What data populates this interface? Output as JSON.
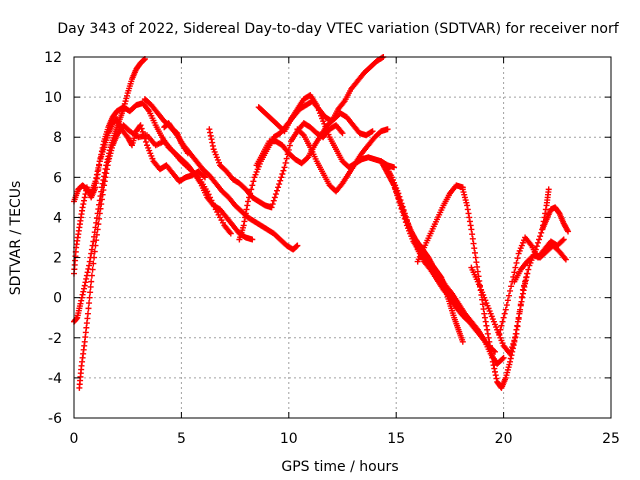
{
  "chart_data": {
    "type": "scatter",
    "title": "Day 343 of 2022, Sidereal Day-to-day VTEC variation (SDTVAR) for receiver norf",
    "xlabel": "GPS time / hours",
    "ylabel": "SDTVAR / TECUs",
    "xlim": [
      0,
      25
    ],
    "ylim": [
      -6,
      12
    ],
    "xticks": [
      0,
      5,
      10,
      15,
      20,
      25
    ],
    "yticks": [
      -6,
      -4,
      -2,
      0,
      2,
      4,
      6,
      8,
      10,
      12
    ],
    "grid": true,
    "marker": "plus",
    "color": "#ff0000",
    "series": [
      {
        "x": [
          0.0,
          0.1,
          0.25,
          0.4,
          0.6,
          0.8,
          1.0,
          1.2,
          1.4,
          1.6,
          1.8,
          2.0,
          2.2,
          2.5,
          2.7,
          2.9,
          3.1,
          3.4,
          3.7,
          4.0,
          4.3,
          4.6,
          4.9,
          5.2,
          5.5,
          5.8,
          6.1
        ],
        "y": [
          1.2,
          2.5,
          3.5,
          4.5,
          5.5,
          5.0,
          5.5,
          6.8,
          7.5,
          8.2,
          8.7,
          8.9,
          8.4,
          8.0,
          7.6,
          8.3,
          8.6,
          7.6,
          6.8,
          6.4,
          6.6,
          6.2,
          5.8,
          6.0,
          6.1,
          6.3,
          6.0
        ]
      },
      {
        "x": [
          0.0,
          0.2,
          0.4,
          0.6,
          0.8,
          1.0,
          1.2,
          1.4,
          1.6,
          1.8,
          2.0,
          2.3,
          2.6,
          2.9,
          3.2,
          3.5,
          3.8,
          4.1,
          4.4,
          4.7,
          5.0,
          5.3,
          5.6,
          5.9,
          6.2,
          6.5,
          6.8,
          7.1,
          7.4,
          7.7,
          8.0,
          8.3
        ],
        "y": [
          4.8,
          5.4,
          5.6,
          5.4,
          5.2,
          5.8,
          6.8,
          7.8,
          8.5,
          9.0,
          9.3,
          9.5,
          9.3,
          9.6,
          9.7,
          9.3,
          8.6,
          8.0,
          7.5,
          7.2,
          6.9,
          6.6,
          6.2,
          5.7,
          5.0,
          4.6,
          4.4,
          4.0,
          3.6,
          3.2,
          3.0,
          2.9
        ]
      },
      {
        "x": [
          0.0,
          0.15,
          0.3,
          0.5,
          0.7,
          0.9,
          1.1,
          1.3,
          1.5,
          1.7,
          1.9,
          2.1,
          2.3,
          2.5,
          2.7,
          2.9,
          3.1,
          3.3
        ],
        "y": [
          -1.2,
          -1.0,
          -0.3,
          0.6,
          1.6,
          2.8,
          4.2,
          5.5,
          6.6,
          7.5,
          8.2,
          8.8,
          9.4,
          10.2,
          10.9,
          11.4,
          11.7,
          11.9
        ]
      },
      {
        "x": [
          0.25,
          0.35,
          0.5,
          0.65,
          0.8,
          1.0,
          1.2,
          1.4,
          1.6,
          1.8,
          2.0,
          2.3,
          2.6,
          3.0,
          3.4,
          3.8,
          4.2,
          4.6,
          5.0,
          5.4,
          5.8,
          6.2,
          6.6,
          7.0,
          7.3
        ],
        "y": [
          -4.5,
          -3.4,
          -2.2,
          -0.8,
          0.8,
          2.6,
          4.2,
          5.6,
          6.8,
          7.6,
          8.1,
          8.6,
          8.3,
          8.0,
          8.1,
          7.6,
          7.8,
          7.3,
          6.8,
          6.4,
          6.0,
          5.3,
          4.4,
          3.6,
          3.2
        ]
      },
      {
        "x": [
          3.3,
          3.6,
          3.9,
          4.2,
          4.5,
          4.8,
          5.1,
          5.4,
          5.7,
          6.0,
          6.3,
          6.6,
          6.9,
          7.2,
          7.5,
          7.8,
          8.1,
          8.4,
          8.7,
          9.0,
          9.3,
          9.6,
          9.9,
          10.2,
          10.4
        ],
        "y": [
          9.9,
          9.6,
          9.2,
          8.8,
          8.5,
          8.1,
          7.6,
          7.2,
          6.8,
          6.4,
          6.1,
          5.7,
          5.3,
          5.0,
          4.6,
          4.3,
          4.0,
          3.8,
          3.6,
          3.4,
          3.2,
          2.9,
          2.6,
          2.4,
          2.6
        ]
      },
      {
        "x": [
          4.2,
          4.4,
          4.6,
          4.8,
          5.0,
          5.3
        ],
        "y": [
          8.5,
          8.7,
          8.4,
          8.2,
          7.7,
          7.2
        ]
      },
      {
        "x": [
          6.3,
          6.5,
          6.8,
          7.1,
          7.4,
          7.7,
          8.0,
          8.3,
          8.6,
          8.9,
          9.2,
          9.5,
          9.8,
          10.1,
          10.4,
          10.7,
          11.0,
          11.3,
          11.6,
          11.9,
          12.2,
          12.5
        ],
        "y": [
          8.4,
          7.4,
          6.6,
          6.3,
          5.9,
          5.7,
          5.4,
          5.0,
          4.8,
          4.6,
          4.5,
          5.5,
          6.5,
          7.8,
          8.3,
          8.7,
          8.5,
          8.2,
          8.0,
          8.4,
          8.6,
          8.2
        ]
      },
      {
        "x": [
          7.7,
          7.9,
          8.1,
          8.4,
          8.7,
          9.0,
          9.3,
          9.6,
          9.9,
          10.2,
          10.5,
          10.8,
          11.1,
          11.4,
          11.7,
          12.0,
          12.3,
          12.6,
          12.9,
          13.2,
          13.5,
          13.8,
          14.1,
          14.4,
          14.6
        ],
        "y": [
          2.9,
          3.6,
          4.8,
          6.0,
          6.8,
          7.4,
          8.0,
          8.2,
          8.6,
          9.0,
          9.4,
          9.6,
          9.8,
          9.4,
          9.0,
          8.8,
          9.4,
          9.8,
          10.4,
          10.8,
          11.2,
          11.5,
          11.8,
          12.0,
          12.1
        ]
      },
      {
        "x": [
          8.5,
          8.8,
          9.1,
          9.4,
          9.7,
          10.0,
          10.3,
          10.6,
          10.9,
          11.2,
          11.5,
          11.8,
          12.1,
          12.4,
          12.7,
          13.0,
          13.3,
          13.6,
          13.9
        ],
        "y": [
          6.6,
          7.2,
          7.8,
          7.8,
          7.6,
          7.2,
          6.9,
          6.7,
          7.0,
          7.6,
          8.1,
          8.6,
          8.9,
          9.2,
          9.0,
          8.6,
          8.2,
          8.1,
          8.3
        ]
      },
      {
        "x": [
          8.6,
          8.9,
          9.2,
          9.5,
          9.8,
          10.1,
          10.4,
          10.7,
          11.0,
          11.3,
          11.6,
          11.9,
          12.2,
          12.5,
          12.8,
          13.1,
          13.4,
          13.7,
          14.0,
          14.3,
          14.6,
          14.9
        ],
        "y": [
          9.5,
          9.2,
          8.9,
          8.6,
          8.3,
          8.9,
          9.4,
          9.9,
          10.1,
          9.6,
          8.8,
          8.0,
          7.4,
          6.8,
          6.5,
          6.7,
          6.9,
          7.0,
          6.9,
          6.8,
          6.6,
          6.5
        ]
      },
      {
        "x": [
          10.4,
          10.7,
          11.0,
          11.3,
          11.6,
          11.9,
          12.2,
          12.5,
          12.8,
          13.1,
          13.4,
          13.7,
          14.0,
          14.3,
          14.6
        ],
        "y": [
          8.4,
          8.1,
          7.5,
          6.8,
          6.2,
          5.6,
          5.3,
          5.7,
          6.2,
          6.7,
          7.2,
          7.6,
          8.0,
          8.3,
          8.4
        ]
      },
      {
        "x": [
          14.3,
          14.5,
          14.7,
          14.9,
          15.1,
          15.3,
          15.5,
          15.7,
          15.9,
          16.1,
          16.3,
          16.5,
          16.7,
          16.9,
          17.1,
          17.3,
          17.5,
          17.7,
          17.9,
          18.1
        ],
        "y": [
          6.8,
          6.4,
          6.0,
          5.6,
          5.0,
          4.4,
          3.8,
          3.3,
          2.9,
          2.6,
          2.3,
          2.0,
          1.6,
          1.3,
          1.0,
          0.4,
          -0.3,
          -1.0,
          -1.6,
          -2.2
        ]
      },
      {
        "x": [
          14.5,
          14.8,
          15.1,
          15.4,
          15.7,
          16.0,
          16.3,
          16.6,
          16.9,
          17.2,
          17.5,
          17.8,
          18.1,
          18.4,
          18.7,
          19.0,
          19.3,
          19.6
        ],
        "y": [
          6.6,
          6.0,
          5.2,
          4.2,
          3.2,
          2.4,
          1.8,
          1.4,
          0.9,
          0.4,
          0.0,
          -0.5,
          -0.9,
          -1.2,
          -1.6,
          -2.0,
          -2.4,
          -2.7
        ]
      },
      {
        "x": [
          14.6,
          14.9,
          15.2,
          15.5,
          15.8,
          16.1,
          16.4,
          16.7,
          17.0,
          17.3,
          17.6,
          17.9,
          18.2,
          18.5,
          18.8,
          19.1,
          19.4,
          19.7,
          20.0
        ],
        "y": [
          6.4,
          5.6,
          4.6,
          3.6,
          2.8,
          2.3,
          1.9,
          1.5,
          1.1,
          0.6,
          0.2,
          -0.3,
          -0.8,
          -1.2,
          -1.6,
          -2.1,
          -2.8,
          -3.3,
          -3.0
        ]
      },
      {
        "x": [
          16.0,
          16.3,
          16.6,
          16.9,
          17.2,
          17.5,
          17.8,
          18.1
        ],
        "y": [
          1.8,
          2.5,
          3.2,
          3.9,
          4.6,
          5.2,
          5.6,
          5.5
        ]
      },
      {
        "x": [
          18.1,
          18.3,
          18.5,
          18.7,
          18.9,
          19.1,
          19.3,
          19.5,
          19.7,
          19.9,
          20.1,
          20.3,
          20.5,
          20.7,
          20.9,
          21.1
        ],
        "y": [
          5.4,
          4.6,
          3.4,
          2.0,
          0.6,
          -0.8,
          -2.0,
          -3.2,
          -4.2,
          -4.5,
          -4.0,
          -3.2,
          -2.2,
          -1.0,
          0.2,
          1.2
        ]
      },
      {
        "x": [
          18.5,
          18.8,
          19.1,
          19.4,
          19.7,
          20.0,
          20.3,
          20.6,
          20.9,
          21.2,
          21.5,
          21.8,
          22.0,
          22.1
        ],
        "y": [
          1.5,
          0.8,
          0.0,
          -0.8,
          -1.6,
          -2.4,
          -2.8,
          -1.8,
          0.4,
          1.6,
          2.4,
          3.4,
          4.6,
          5.4
        ]
      },
      {
        "x": [
          19.8,
          20.1,
          20.4,
          20.7,
          21.0,
          21.3,
          21.6,
          21.9,
          22.2,
          22.5,
          22.8
        ],
        "y": [
          -1.8,
          -0.6,
          0.8,
          2.2,
          3.0,
          2.6,
          2.0,
          2.4,
          2.8,
          2.6,
          2.9
        ]
      },
      {
        "x": [
          20.5,
          20.8,
          21.1,
          21.4,
          21.7,
          22.0,
          22.3,
          22.6,
          22.9
        ],
        "y": [
          0.8,
          1.4,
          1.8,
          2.1,
          2.0,
          2.3,
          2.6,
          2.3,
          1.9
        ]
      },
      {
        "x": [
          21.8,
          22.0,
          22.2,
          22.4,
          22.6,
          22.8,
          23.0
        ],
        "y": [
          3.4,
          3.9,
          4.4,
          4.5,
          4.2,
          3.7,
          3.3
        ]
      }
    ]
  }
}
